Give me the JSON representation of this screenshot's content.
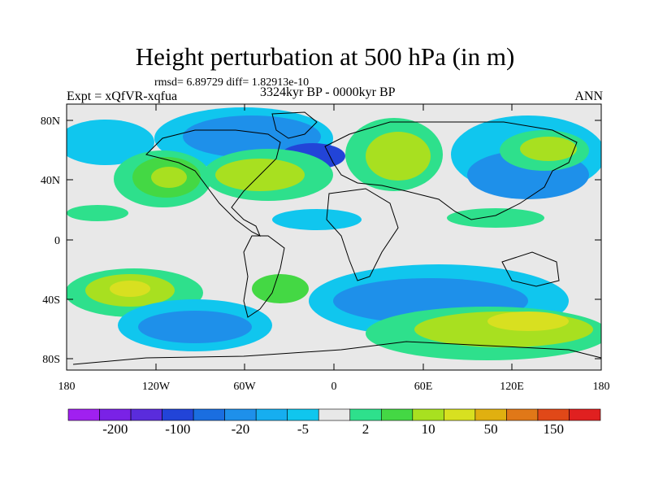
{
  "title": "Height perturbation at 500 hPa (in m)",
  "stats": "rmsd= 6.89729 diff= 1.82913e-10",
  "experiment": "Expt = xQfVR-xqfua",
  "period": "3324kyr BP - 0000kyr BP",
  "season": "ANN",
  "axes": {
    "lat_ticks": [
      "80N",
      "40N",
      "0",
      "40S",
      "80S"
    ],
    "lon_ticks": [
      "180",
      "120W",
      "60W",
      "0",
      "60E",
      "120E",
      "180"
    ]
  },
  "colorbar": {
    "colors": [
      "#a020f0",
      "#7a22e6",
      "#5a2cdc",
      "#2244d8",
      "#1a6ee0",
      "#1e90ea",
      "#16aef0",
      "#10c6ee",
      "#e8e8e8",
      "#2ee08c",
      "#44d844",
      "#a8e020",
      "#d8e020",
      "#e0b010",
      "#e07818",
      "#e04818",
      "#e02020"
    ],
    "labels": [
      "-200",
      "-100",
      "-20",
      "-5",
      "2",
      "10",
      "50",
      "150"
    ]
  },
  "palette": {
    "neutral": "#e8e8e8",
    "cyan": "#10c6ee",
    "sky": "#16aef0",
    "blue": "#1e90ea",
    "mid_blue": "#1a6ee0",
    "deep_blue": "#2244d8",
    "aqua_green": "#2ee08c",
    "green": "#44d844",
    "yellow_green": "#a8e020",
    "yellow": "#d8e020"
  }
}
